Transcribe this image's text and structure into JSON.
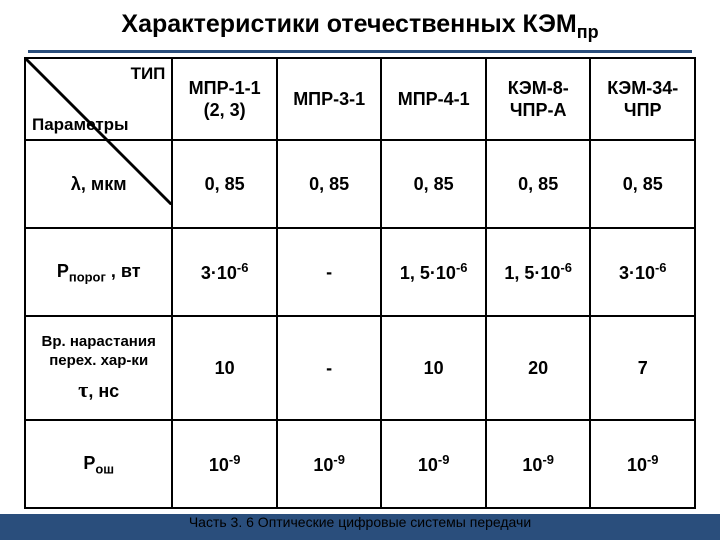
{
  "title_html": "Характеристики отечественных КЭМ<sub>пр</sub>",
  "corner": {
    "top": "ТИП",
    "bottom": "Параметры"
  },
  "cols": [
    {
      "html": "МПР-1-1<br>(2, 3)"
    },
    {
      "html": "МПР-3-1"
    },
    {
      "html": "МПР-4-1"
    },
    {
      "html": "КЭМ-8-<br>ЧПР-А"
    },
    {
      "html": "КЭМ-34-<br>ЧПР"
    }
  ],
  "rows": [
    {
      "label_html": "λ, мкм",
      "cells": [
        "0, 85",
        "0, 85",
        "0, 85",
        "0, 85",
        "0, 85"
      ]
    },
    {
      "label_html": "Р<sub>порог</sub> , вт",
      "cells_html": [
        "3·10<sup>-6</sup>",
        "-",
        "1, 5·10<sup>-6</sup>",
        "1, 5·10<sup>-6</sup>",
        "3·10<sup>-6</sup>"
      ]
    },
    {
      "tall": true,
      "label_html": "<span class='small-line'>Вр. нарастания</span><span class='small-line'>перех. хар-ки</span><span style='display:block;height:6px'></span><span class='tau'>τ</span>, нс",
      "cells": [
        "10",
        "-",
        "10",
        "20",
        "7"
      ]
    },
    {
      "label_html": "Р<sub>ош</sub>",
      "cells_html": [
        "10<sup>-9</sup>",
        "10<sup>-9</sup>",
        "10<sup>-9</sup>",
        "10<sup>-9</sup>",
        "10<sup>-9</sup>"
      ]
    }
  ],
  "footer": "Часть 3. 6 Оптические цифровые системы передачи",
  "colors": {
    "rule": "#2a4e7c",
    "border": "#000000",
    "footer_bar": "#2a4e7c"
  }
}
